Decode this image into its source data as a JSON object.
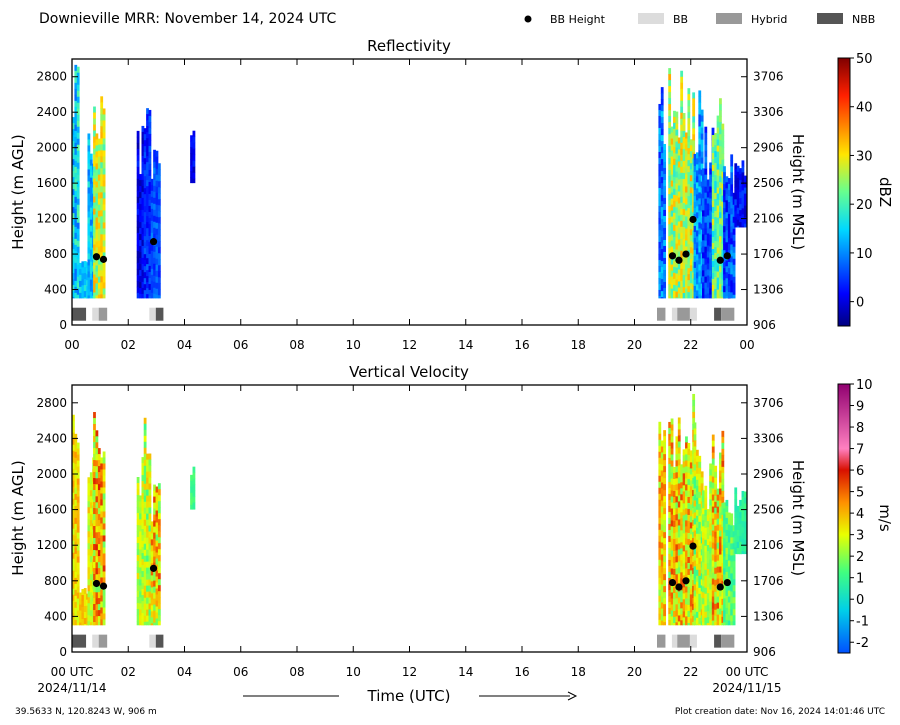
{
  "header": {
    "title": "Downieville MRR:  November 14, 2024 UTC",
    "legend": [
      {
        "label": "BB Height",
        "kind": "dot",
        "color": "#000000"
      },
      {
        "label": "BB",
        "kind": "patch",
        "color": "#dcdcdc"
      },
      {
        "label": "Hybrid",
        "kind": "patch",
        "color": "#999999"
      },
      {
        "label": "NBB",
        "kind": "patch",
        "color": "#555555"
      }
    ]
  },
  "chart_data": [
    {
      "type": "heatmap",
      "title": "Reflectivity",
      "ylabel": "Height (m AGL)",
      "ylabel_right": "Height (m MSL)",
      "xlim": [
        0,
        24
      ],
      "ylim": [
        0,
        3000
      ],
      "yticks": [
        "0",
        "400",
        "800",
        "1200",
        "1600",
        "2000",
        "2400",
        "2800"
      ],
      "yticks_right": [
        "906",
        "1306",
        "1706",
        "2106",
        "2506",
        "2906",
        "3306",
        "3706"
      ],
      "xticks": [
        "00",
        "02",
        "04",
        "06",
        "08",
        "10",
        "12",
        "14",
        "16",
        "18",
        "20",
        "22",
        "00"
      ],
      "colorbar": {
        "label": "dBZ",
        "range": [
          -5,
          50
        ],
        "ticks": [
          "0",
          "10",
          "20",
          "30",
          "40",
          "50"
        ],
        "tick_values": [
          0,
          10,
          20,
          30,
          40,
          50
        ],
        "colormap": "jet"
      },
      "bb_height_points": [
        {
          "x": 0.87,
          "y": 770
        },
        {
          "x": 1.12,
          "y": 740
        },
        {
          "x": 2.9,
          "y": 940
        },
        {
          "x": 21.35,
          "y": 780
        },
        {
          "x": 21.58,
          "y": 730
        },
        {
          "x": 21.83,
          "y": 800
        },
        {
          "x": 22.08,
          "y": 1190
        },
        {
          "x": 23.05,
          "y": 730
        },
        {
          "x": 23.3,
          "y": 780
        }
      ],
      "bb_type_strip": [
        {
          "start": 0.0,
          "end": 0.5,
          "type": "NBB"
        },
        {
          "start": 0.72,
          "end": 0.95,
          "type": "BB"
        },
        {
          "start": 0.95,
          "end": 1.25,
          "type": "Hybrid"
        },
        {
          "start": 2.75,
          "end": 2.98,
          "type": "BB"
        },
        {
          "start": 2.98,
          "end": 3.25,
          "type": "NBB"
        },
        {
          "start": 20.8,
          "end": 21.1,
          "type": "Hybrid"
        },
        {
          "start": 21.33,
          "end": 21.52,
          "type": "BB"
        },
        {
          "start": 21.52,
          "end": 21.97,
          "type": "Hybrid"
        },
        {
          "start": 21.97,
          "end": 22.22,
          "type": "BB"
        },
        {
          "start": 22.83,
          "end": 23.08,
          "type": "NBB"
        },
        {
          "start": 23.08,
          "end": 23.55,
          "type": "Hybrid"
        }
      ],
      "echo_segments": [
        {
          "start": 0.0,
          "end": 0.25,
          "top": 2950,
          "base": 300,
          "value_low": 8,
          "value_high": 22
        },
        {
          "start": 0.25,
          "end": 0.55,
          "top": 800,
          "base": 300,
          "value_low": 10,
          "value_high": 18
        },
        {
          "start": 0.55,
          "end": 0.75,
          "top": 2300,
          "base": 300,
          "value_low": 8,
          "value_high": 18
        },
        {
          "start": 0.75,
          "end": 1.1,
          "top": 3000,
          "base": 300,
          "value_low": 20,
          "value_high": 34
        },
        {
          "start": 2.3,
          "end": 2.55,
          "top": 2300,
          "base": 300,
          "value_low": -3,
          "value_high": 5
        },
        {
          "start": 2.55,
          "end": 2.8,
          "top": 2650,
          "base": 300,
          "value_low": 0,
          "value_high": 8
        },
        {
          "start": 2.8,
          "end": 3.1,
          "top": 2000,
          "base": 300,
          "value_low": 3,
          "value_high": 10
        },
        {
          "start": 4.2,
          "end": 4.3,
          "top": 2200,
          "base": 1600,
          "value_low": -2,
          "value_high": 4
        },
        {
          "start": 20.85,
          "end": 21.1,
          "top": 2700,
          "base": 300,
          "value_low": 3,
          "value_high": 15
        },
        {
          "start": 21.2,
          "end": 22.1,
          "top": 3000,
          "base": 300,
          "value_low": 18,
          "value_high": 34
        },
        {
          "start": 22.1,
          "end": 22.4,
          "top": 2700,
          "base": 300,
          "value_low": 5,
          "value_high": 16
        },
        {
          "start": 22.4,
          "end": 22.75,
          "top": 2300,
          "base": 300,
          "value_low": 0,
          "value_high": 10
        },
        {
          "start": 22.75,
          "end": 23.15,
          "top": 2600,
          "base": 300,
          "value_low": 15,
          "value_high": 30
        },
        {
          "start": 23.15,
          "end": 23.55,
          "top": 2000,
          "base": 300,
          "value_low": 0,
          "value_high": 12
        },
        {
          "start": 23.55,
          "end": 23.95,
          "top": 1900,
          "base": 1100,
          "value_low": -2,
          "value_high": 6
        }
      ]
    },
    {
      "type": "heatmap",
      "title": "Vertical Velocity",
      "ylabel": "Height (m AGL)",
      "ylabel_right": "Height (m MSL)",
      "xlim": [
        0,
        24
      ],
      "ylim": [
        0,
        3000
      ],
      "yticks": [
        "0",
        "400",
        "800",
        "1200",
        "1600",
        "2000",
        "2400",
        "2800"
      ],
      "yticks_right": [
        "906",
        "1306",
        "1706",
        "2106",
        "2506",
        "2906",
        "3306",
        "3706"
      ],
      "xticks": [
        "00 UTC",
        "02",
        "04",
        "06",
        "08",
        "10",
        "12",
        "14",
        "16",
        "18",
        "20",
        "22",
        "00 UTC"
      ],
      "xdate_start": "2024/11/14",
      "xdate_end": "2024/11/15",
      "xlabel": "Time (UTC)",
      "colorbar": {
        "label": "m/s",
        "range": [
          -2.5,
          10
        ],
        "ticks": [
          "-2",
          "-1",
          "0",
          "1",
          "2",
          "3",
          "4",
          "5",
          "6",
          "7",
          "8",
          "9",
          "10"
        ],
        "tick_values": [
          -2,
          -1,
          0,
          1,
          2,
          3,
          4,
          5,
          6,
          7,
          8,
          9,
          10
        ],
        "colormap": "vv"
      },
      "bb_height_points": [
        {
          "x": 0.87,
          "y": 770
        },
        {
          "x": 1.12,
          "y": 740
        },
        {
          "x": 2.9,
          "y": 940
        },
        {
          "x": 21.35,
          "y": 780
        },
        {
          "x": 21.58,
          "y": 730
        },
        {
          "x": 21.83,
          "y": 800
        },
        {
          "x": 22.08,
          "y": 1190
        },
        {
          "x": 23.05,
          "y": 730
        },
        {
          "x": 23.3,
          "y": 780
        }
      ],
      "bb_type_strip": [
        {
          "start": 0.0,
          "end": 0.5,
          "type": "NBB"
        },
        {
          "start": 0.72,
          "end": 0.95,
          "type": "BB"
        },
        {
          "start": 0.95,
          "end": 1.25,
          "type": "Hybrid"
        },
        {
          "start": 2.75,
          "end": 2.98,
          "type": "BB"
        },
        {
          "start": 2.98,
          "end": 3.25,
          "type": "NBB"
        },
        {
          "start": 20.8,
          "end": 21.1,
          "type": "Hybrid"
        },
        {
          "start": 21.33,
          "end": 21.52,
          "type": "BB"
        },
        {
          "start": 21.52,
          "end": 21.97,
          "type": "Hybrid"
        },
        {
          "start": 21.97,
          "end": 22.22,
          "type": "BB"
        },
        {
          "start": 22.83,
          "end": 23.08,
          "type": "NBB"
        },
        {
          "start": 23.08,
          "end": 23.55,
          "type": "Hybrid"
        }
      ],
      "echo_segments": [
        {
          "start": 0.0,
          "end": 0.25,
          "top": 2950,
          "base": 300,
          "value_low": 2.5,
          "value_high": 4.5
        },
        {
          "start": 0.25,
          "end": 0.55,
          "top": 800,
          "base": 300,
          "value_low": 3,
          "value_high": 4.5
        },
        {
          "start": 0.55,
          "end": 0.75,
          "top": 2300,
          "base": 300,
          "value_low": 2,
          "value_high": 4
        },
        {
          "start": 0.75,
          "end": 1.1,
          "top": 3000,
          "base": 300,
          "value_low": 1.5,
          "value_high": 6
        },
        {
          "start": 2.3,
          "end": 2.55,
          "top": 2300,
          "base": 300,
          "value_low": 1.5,
          "value_high": 3.5
        },
        {
          "start": 2.55,
          "end": 2.8,
          "top": 2650,
          "base": 300,
          "value_low": 1,
          "value_high": 4
        },
        {
          "start": 2.8,
          "end": 3.1,
          "top": 2000,
          "base": 300,
          "value_low": 1.5,
          "value_high": 5.5
        },
        {
          "start": 4.2,
          "end": 4.3,
          "top": 2200,
          "base": 1600,
          "value_low": 0.8,
          "value_high": 1.5
        },
        {
          "start": 20.85,
          "end": 21.1,
          "top": 2700,
          "base": 300,
          "value_low": 2,
          "value_high": 5
        },
        {
          "start": 21.2,
          "end": 22.1,
          "top": 3000,
          "base": 300,
          "value_low": 1.5,
          "value_high": 5.5
        },
        {
          "start": 22.1,
          "end": 22.4,
          "top": 2700,
          "base": 300,
          "value_low": 1,
          "value_high": 4
        },
        {
          "start": 22.4,
          "end": 22.75,
          "top": 2300,
          "base": 300,
          "value_low": 1.5,
          "value_high": 3.5
        },
        {
          "start": 22.75,
          "end": 23.15,
          "top": 2600,
          "base": 300,
          "value_low": 1.5,
          "value_high": 5.5
        },
        {
          "start": 23.15,
          "end": 23.55,
          "top": 2000,
          "base": 300,
          "value_low": 0.5,
          "value_high": 2.5
        },
        {
          "start": 23.55,
          "end": 23.95,
          "top": 1900,
          "base": 1100,
          "value_low": 0.3,
          "value_high": 1.2
        }
      ]
    }
  ],
  "footer": {
    "location": "39.5633 N, 120.8243 W, 906 m",
    "creation": "Plot creation date: Nov 16, 2024 14:01:46 UTC"
  }
}
